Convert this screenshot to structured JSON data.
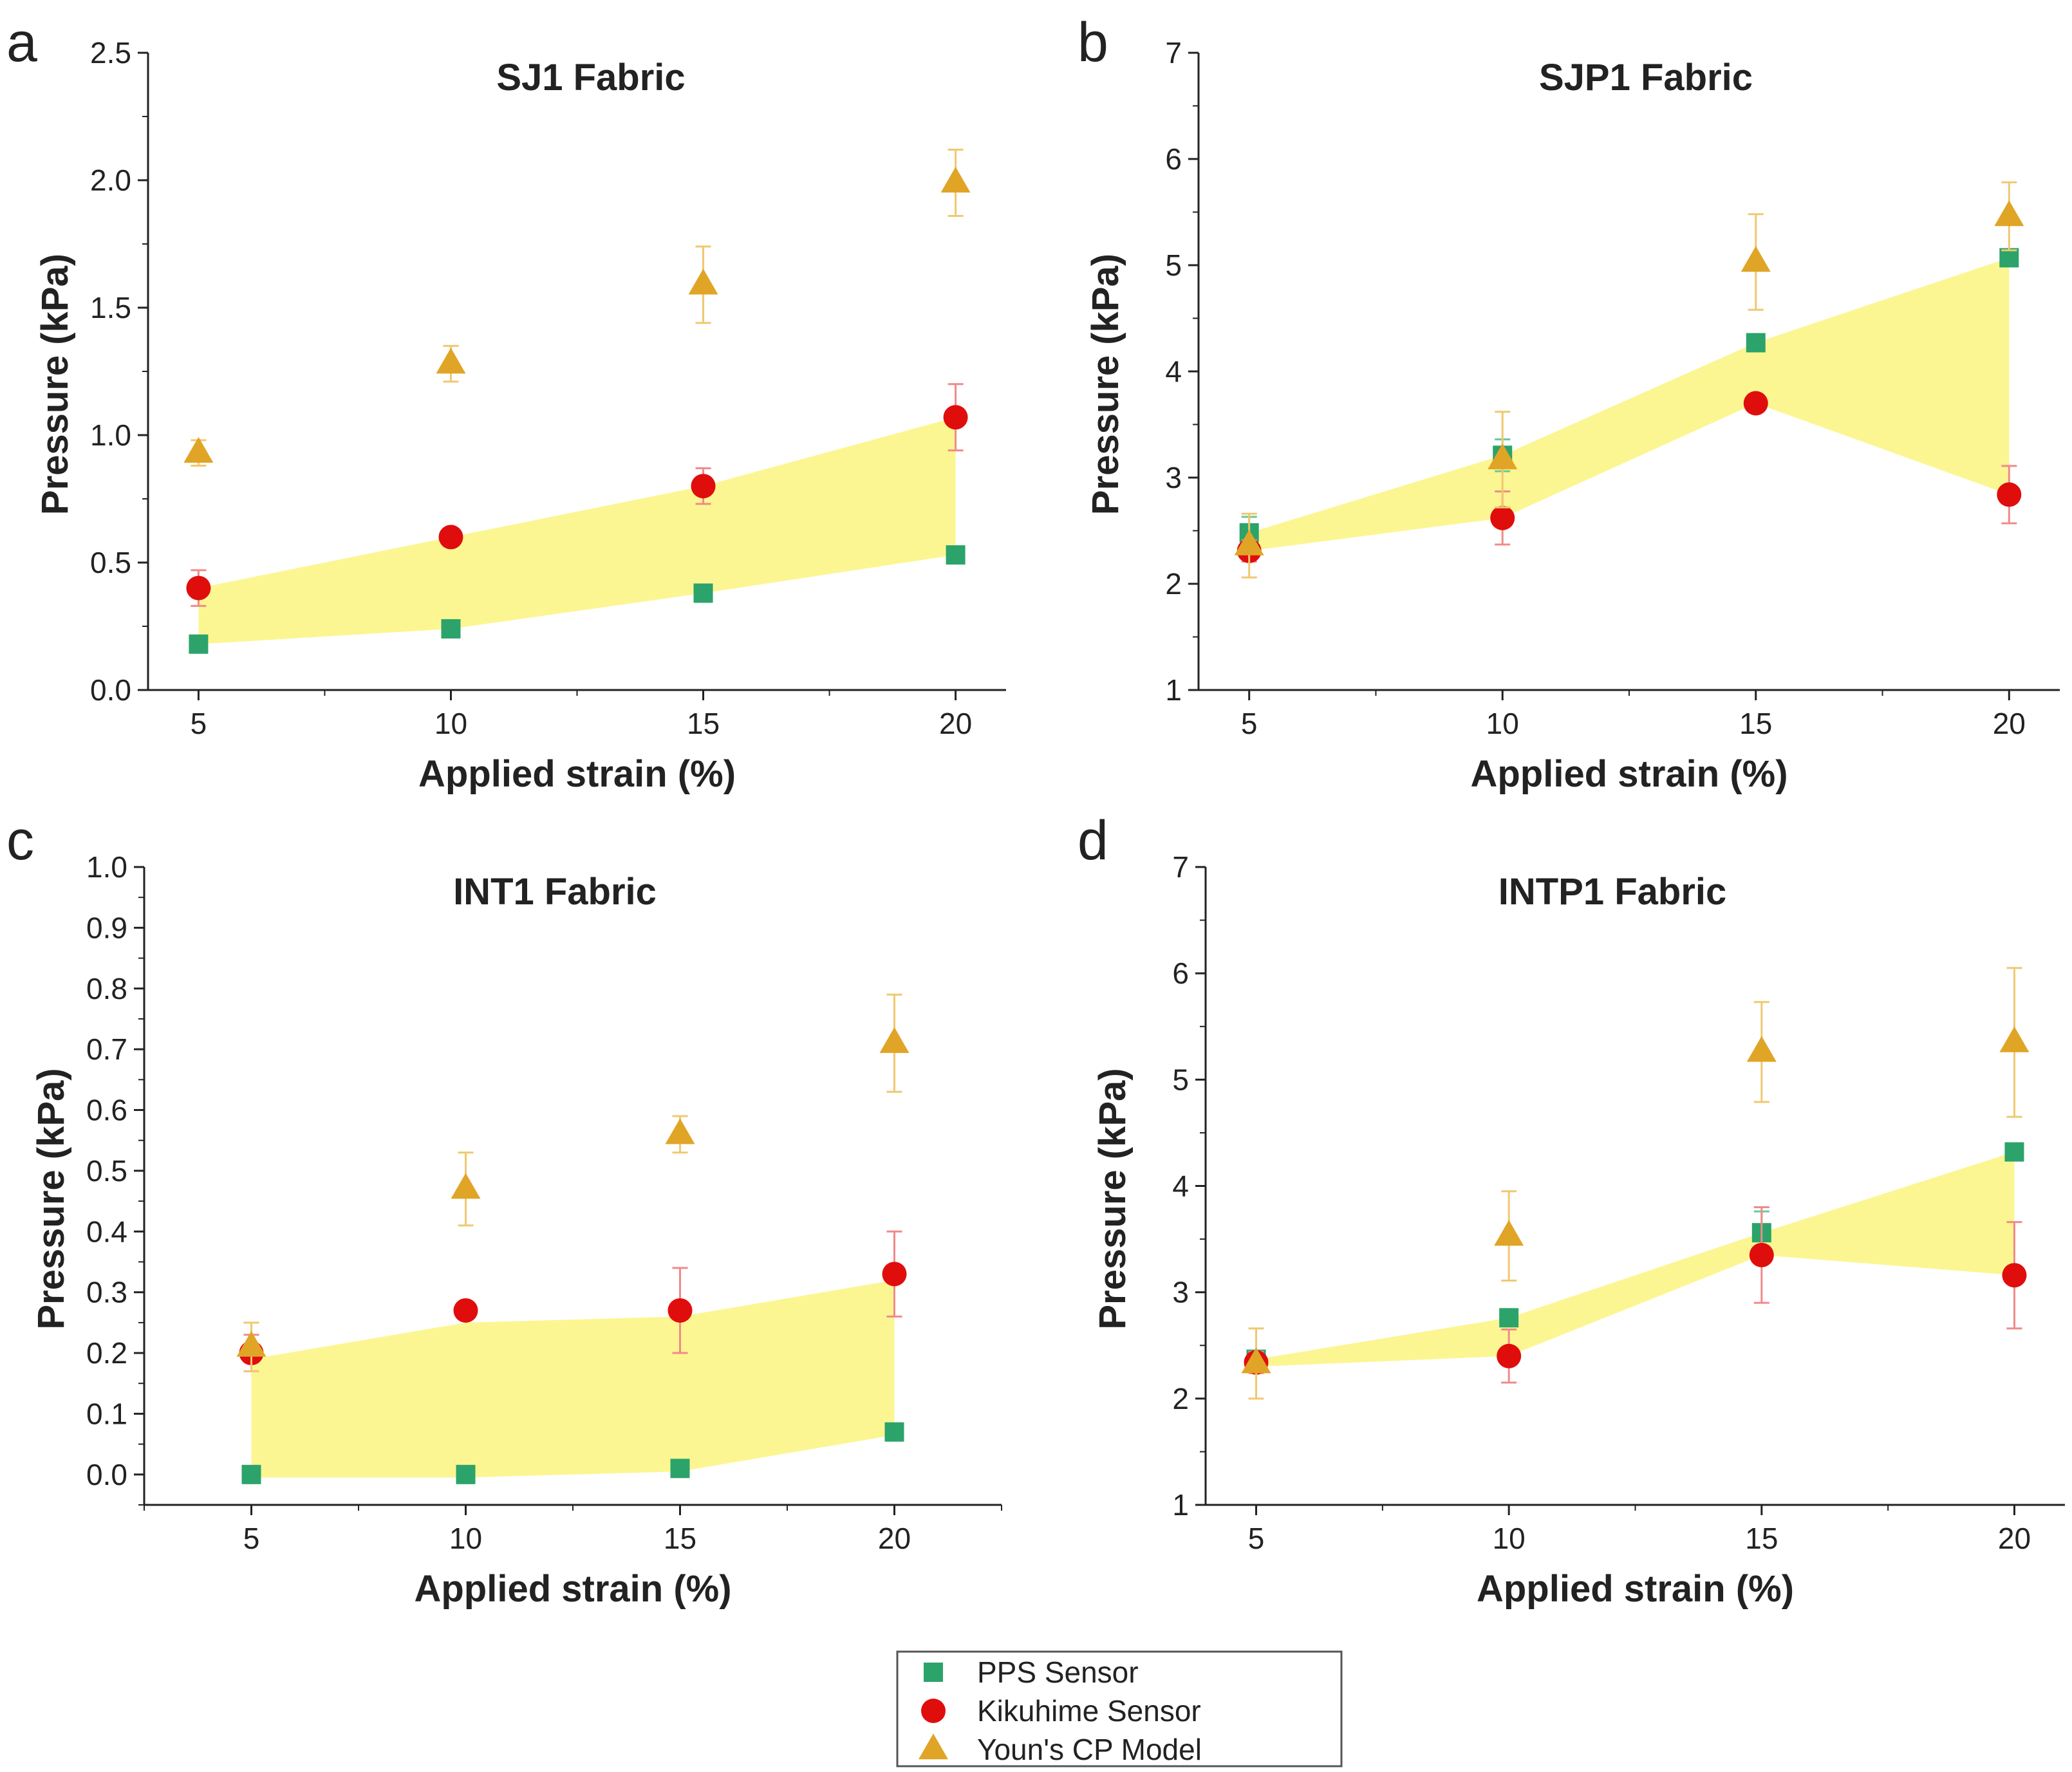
{
  "colors": {
    "pps": "#2ca36a",
    "kikuhime": "#e00d0d",
    "youn": "#e0a526",
    "band": "#fbf58c",
    "axis": "#222222",
    "err_pps": "#6cc79a",
    "err_kik": "#f08a8a",
    "err_youn": "#f0c870"
  },
  "legend": {
    "items": [
      {
        "key": "pps",
        "label": "PPS Sensor",
        "marker": "square"
      },
      {
        "key": "kikuhime",
        "label": "Kikuhime Sensor",
        "marker": "circle"
      },
      {
        "key": "youn",
        "label": "Youn's CP Model",
        "marker": "triangle"
      }
    ]
  },
  "chart_data": [
    {
      "panel": "a",
      "type": "scatter",
      "title": "SJ1 Fabric",
      "xlabel": "Applied strain (%)",
      "ylabel": "Pressure (kPa)",
      "x": [
        5,
        10,
        15,
        20
      ],
      "xticks": [
        "5",
        "10",
        "15",
        "20"
      ],
      "xlim": [
        4,
        21
      ],
      "ylim": [
        0,
        2.5
      ],
      "yticks": [
        "0.0",
        "0.5",
        "1.0",
        "1.5",
        "2.0",
        "2.5"
      ],
      "yminor": 0.25,
      "series": [
        {
          "name": "PPS Sensor",
          "key": "pps",
          "values": [
            0.18,
            0.24,
            0.38,
            0.53
          ],
          "err": [
            0.02,
            0.02,
            0.02,
            0.02
          ]
        },
        {
          "name": "Kikuhime Sensor",
          "key": "kikuhime",
          "values": [
            0.4,
            0.6,
            0.8,
            1.07
          ],
          "err": [
            0.07,
            0.02,
            0.07,
            0.13
          ]
        },
        {
          "name": "Youn's CP Model",
          "key": "youn",
          "values": [
            0.93,
            1.28,
            1.59,
            1.99
          ],
          "err": [
            0.05,
            0.07,
            0.15,
            0.13
          ]
        }
      ],
      "band": {
        "upper": [
          0.4,
          0.6,
          0.8,
          1.07
        ],
        "lower": [
          0.18,
          0.24,
          0.38,
          0.53
        ]
      }
    },
    {
      "panel": "b",
      "type": "scatter",
      "title": "SJP1 Fabric",
      "xlabel": "Applied strain (%)",
      "ylabel": "Pressure (kPa)",
      "x": [
        5,
        10,
        15,
        20
      ],
      "xticks": [
        "5",
        "10",
        "15",
        "20"
      ],
      "xlim": [
        4,
        21
      ],
      "ylim": [
        1,
        7
      ],
      "yticks": [
        "1",
        "2",
        "3",
        "4",
        "5",
        "6",
        "7"
      ],
      "yminor": 0.5,
      "series": [
        {
          "name": "PPS Sensor",
          "key": "pps",
          "values": [
            2.48,
            3.21,
            4.27,
            5.07
          ],
          "err": [
            0.15,
            0.15,
            0.05,
            0.05
          ]
        },
        {
          "name": "Kikuhime Sensor",
          "key": "kikuhime",
          "values": [
            2.31,
            2.62,
            3.7,
            2.84
          ],
          "err": [
            0.1,
            0.25,
            0.08,
            0.27
          ]
        },
        {
          "name": "Youn's CP Model",
          "key": "youn",
          "values": [
            2.36,
            3.17,
            5.03,
            5.46
          ],
          "err": [
            0.3,
            0.45,
            0.45,
            0.32
          ]
        }
      ],
      "band": {
        "upper": [
          2.48,
          3.21,
          4.27,
          5.07
        ],
        "lower": [
          2.31,
          2.62,
          3.7,
          2.84
        ]
      }
    },
    {
      "panel": "c",
      "type": "scatter",
      "title": "INT1 Fabric",
      "xlabel": "Applied strain (%)",
      "ylabel": "Pressure (kPa)",
      "x": [
        5,
        10,
        15,
        20
      ],
      "xticks": [
        "5",
        "10",
        "15",
        "20"
      ],
      "xlim": [
        2.5,
        22.5
      ],
      "ylim": [
        -0.05,
        1.0
      ],
      "yticks": [
        "0.0",
        "0.1",
        "0.2",
        "0.3",
        "0.4",
        "0.5",
        "0.6",
        "0.7",
        "0.8",
        "0.9",
        "1.0"
      ],
      "ytickvals": [
        0,
        0.1,
        0.2,
        0.3,
        0.4,
        0.5,
        0.6,
        0.7,
        0.8,
        0.9,
        1.0
      ],
      "yminor": 0.05,
      "series": [
        {
          "name": "PPS Sensor",
          "key": "pps",
          "values": [
            0.0,
            0.0,
            0.01,
            0.07
          ],
          "err": [
            0.005,
            0.005,
            0.005,
            0.005
          ]
        },
        {
          "name": "Kikuhime Sensor",
          "key": "kikuhime",
          "values": [
            0.2,
            0.27,
            0.27,
            0.33
          ],
          "err": [
            0.03,
            0.01,
            0.07,
            0.07
          ]
        },
        {
          "name": "Youn's CP Model",
          "key": "youn",
          "values": [
            0.21,
            0.47,
            0.56,
            0.71
          ],
          "err": [
            0.04,
            0.06,
            0.03,
            0.08
          ]
        }
      ],
      "band": {
        "upper": [
          0.19,
          0.25,
          0.26,
          0.32
        ],
        "lower": [
          -0.005,
          -0.005,
          0.005,
          0.065
        ]
      }
    },
    {
      "panel": "d",
      "type": "scatter",
      "title": "INTP1 Fabric",
      "xlabel": "Applied strain (%)",
      "ylabel": "Pressure (kPa)",
      "x": [
        5,
        10,
        15,
        20
      ],
      "xticks": [
        "5",
        "10",
        "15",
        "20"
      ],
      "xlim": [
        4,
        21
      ],
      "ylim": [
        1,
        7
      ],
      "yticks": [
        "1",
        "2",
        "3",
        "4",
        "5",
        "6",
        "7"
      ],
      "yminor": 0.5,
      "series": [
        {
          "name": "PPS Sensor",
          "key": "pps",
          "values": [
            2.37,
            2.76,
            3.56,
            4.32
          ],
          "err": [
            0.05,
            0.05,
            0.2,
            0.05
          ]
        },
        {
          "name": "Kikuhime Sensor",
          "key": "kikuhime",
          "values": [
            2.34,
            2.4,
            3.35,
            3.16
          ],
          "err": [
            0.1,
            0.25,
            0.45,
            0.5
          ]
        },
        {
          "name": "Youn's CP Model",
          "key": "youn",
          "values": [
            2.33,
            3.53,
            5.26,
            5.35
          ],
          "err": [
            0.33,
            0.42,
            0.47,
            0.7
          ]
        }
      ],
      "band": {
        "upper": [
          2.37,
          2.76,
          3.56,
          4.32
        ],
        "lower": [
          2.3,
          2.4,
          3.35,
          3.16
        ]
      }
    }
  ]
}
